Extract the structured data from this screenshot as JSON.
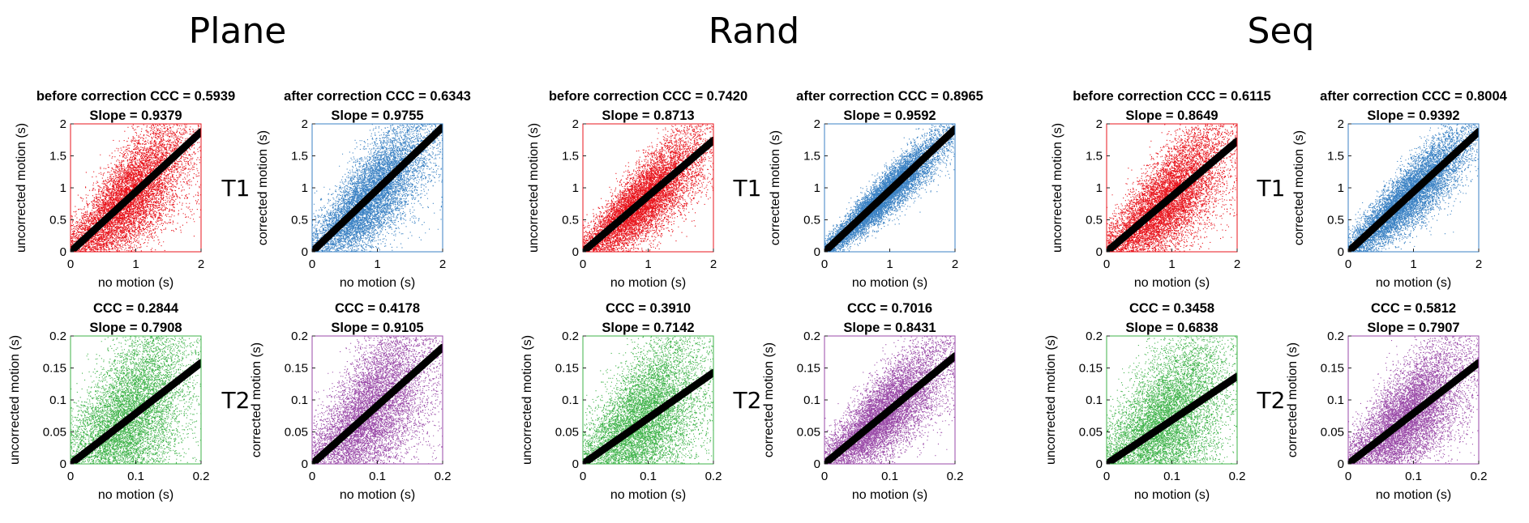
{
  "chart_data": {
    "type": "scatter",
    "groups": [
      "Plane",
      "Rand",
      "Seq"
    ],
    "rows": [
      {
        "label": "T1",
        "xlabel": "no motion (s)",
        "xlim": [
          0,
          2
        ],
        "ylim": [
          0,
          2
        ],
        "xticks": [
          "0",
          "1",
          "2"
        ],
        "yticks": [
          "0",
          "0.5",
          "1",
          "1.5",
          "2"
        ],
        "tick_values_x": [
          0,
          1,
          2
        ],
        "tick_values_y": [
          0,
          0.5,
          1,
          1.5,
          2
        ]
      },
      {
        "label": "T2",
        "xlabel": "no motion (s)",
        "xlim": [
          0,
          0.2
        ],
        "ylim": [
          0,
          0.2
        ],
        "xticks": [
          "0",
          "0.1",
          "0.2"
        ],
        "yticks": [
          "0",
          "0.05",
          "0.1",
          "0.15",
          "0.2"
        ],
        "tick_values_x": [
          0,
          0.1,
          0.2
        ],
        "tick_values_y": [
          0,
          0.05,
          0.1,
          0.15,
          0.2
        ]
      }
    ],
    "colors": {
      "T1_before": "#e8141c",
      "T1_after": "#3b82c4",
      "T2_before": "#3fb34a",
      "T2_after": "#9a4aa8",
      "fit_line": "#000000"
    },
    "panels": [
      {
        "group": "Plane",
        "row": "T1",
        "col": "before",
        "title1": "before correction CCC = 0.5939",
        "title2": "Slope = 0.9379",
        "ylabel": "uncorrected motion (s)",
        "ccc": 0.5939,
        "slope": 0.9379
      },
      {
        "group": "Plane",
        "row": "T1",
        "col": "after",
        "title1": "after correction CCC = 0.6343",
        "title2": "Slope = 0.9755",
        "ylabel": "corrected motion (s)",
        "ccc": 0.6343,
        "slope": 0.9755
      },
      {
        "group": "Plane",
        "row": "T2",
        "col": "before",
        "title1": "CCC = 0.2844",
        "title2": "Slope = 0.7908",
        "ylabel": "uncorrected motion (s)",
        "ccc": 0.2844,
        "slope": 0.7908
      },
      {
        "group": "Plane",
        "row": "T2",
        "col": "after",
        "title1": "CCC = 0.4178",
        "title2": "Slope = 0.9105",
        "ylabel": "corrected motion (s)",
        "ccc": 0.4178,
        "slope": 0.9105
      },
      {
        "group": "Rand",
        "row": "T1",
        "col": "before",
        "title1": "before correction CCC = 0.7420",
        "title2": "Slope = 0.8713",
        "ylabel": "uncorrected motion (s)",
        "ccc": 0.742,
        "slope": 0.8713
      },
      {
        "group": "Rand",
        "row": "T1",
        "col": "after",
        "title1": "after correction CCC = 0.8965",
        "title2": "Slope = 0.9592",
        "ylabel": "corrected motion (s)",
        "ccc": 0.8965,
        "slope": 0.9592
      },
      {
        "group": "Rand",
        "row": "T2",
        "col": "before",
        "title1": "CCC = 0.3910",
        "title2": "Slope = 0.7142",
        "ylabel": "uncorrected motion (s)",
        "ccc": 0.391,
        "slope": 0.7142
      },
      {
        "group": "Rand",
        "row": "T2",
        "col": "after",
        "title1": "CCC = 0.7016",
        "title2": "Slope = 0.8431",
        "ylabel": "corrected motion (s)",
        "ccc": 0.7016,
        "slope": 0.8431
      },
      {
        "group": "Seq",
        "row": "T1",
        "col": "before",
        "title1": "before correction CCC = 0.6115",
        "title2": "Slope = 0.8649",
        "ylabel": "uncorrected motion (s)",
        "ccc": 0.6115,
        "slope": 0.8649
      },
      {
        "group": "Seq",
        "row": "T1",
        "col": "after",
        "title1": "after correction CCC = 0.8004",
        "title2": "Slope = 0.9392",
        "ylabel": "corrected motion (s)",
        "ccc": 0.8004,
        "slope": 0.9392
      },
      {
        "group": "Seq",
        "row": "T2",
        "col": "before",
        "title1": "CCC = 0.3458",
        "title2": "Slope = 0.6838",
        "ylabel": "uncorrected motion (s)",
        "ccc": 0.3458,
        "slope": 0.6838
      },
      {
        "group": "Seq",
        "row": "T2",
        "col": "after",
        "title1": "CCC = 0.5812",
        "title2": "Slope = 0.7907",
        "ylabel": "corrected motion (s)",
        "ccc": 0.5812,
        "slope": 0.7907
      }
    ]
  }
}
